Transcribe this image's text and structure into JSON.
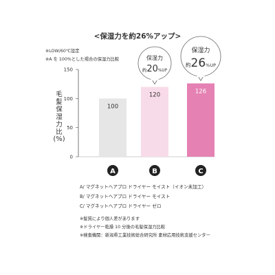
{
  "title": "<保湿力を約26%アップ>",
  "notes_top": [
    "※LOW/60℃設定",
    "※A を 100%とした場合の保湿力比較"
  ],
  "chart_data": {
    "type": "bar",
    "ylabel": "毛髪保湿力比",
    "yunit": "(%)",
    "ylim": [
      0,
      150
    ],
    "yticks": [
      0,
      50,
      100,
      150
    ],
    "grid": false,
    "categories": [
      "A",
      "B",
      "C"
    ],
    "values": [
      100,
      120,
      126
    ],
    "bar_colors": [
      "#e6e6e6",
      "#f8dbe8",
      "#e581b3"
    ],
    "label_colors": [
      "#333333",
      "#333333",
      "#ffffff"
    ],
    "callouts": [
      {
        "category": "B",
        "line1": "保湿力",
        "prefix": "約",
        "number": "20",
        "suffix": "%UP",
        "size": "small"
      },
      {
        "category": "C",
        "line1": "保湿力",
        "prefix": "約",
        "number": "26",
        "suffix": "%UP",
        "size": "large"
      }
    ]
  },
  "legend": [
    "A/ マグネットヘアプロ ドライヤー モイスト（イオン未加工）",
    "B/ マグネットヘアプロ ドライヤー モイスト",
    "C/ マグネットヘアプロ ドライヤー ゼロ"
  ],
  "notes_bottom": [
    "※髪質により個人差があります",
    "※ドライヤー乾燥 10 分後の毛髪保湿力比較",
    "※検査機関：新潟県工業技術総合研究所 素材応用技術支援センター"
  ],
  "colors": {
    "text": "#333333",
    "axis": "#555555",
    "badge": "#222222",
    "accent": "#e581b3"
  }
}
